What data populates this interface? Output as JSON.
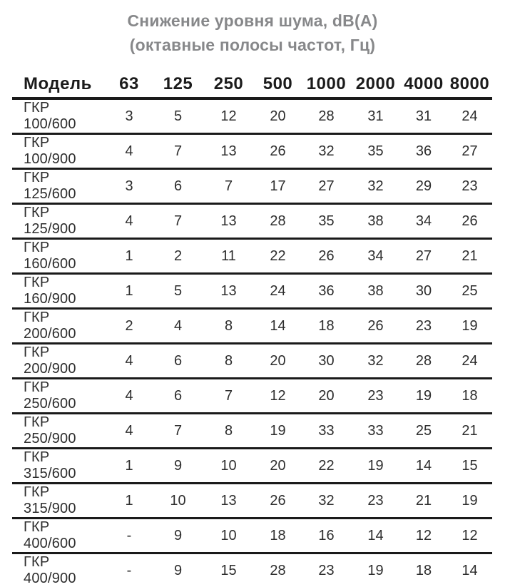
{
  "title": {
    "line1": "Снижение уровня шума, dB(A)",
    "line2": "(октавные полосы частот, Гц)"
  },
  "table": {
    "model_header": "Модель",
    "frequency_headers": [
      "63",
      "125",
      "250",
      "500",
      "1000",
      "2000",
      "4000",
      "8000"
    ],
    "rows": [
      {
        "model": "ГКР 100/600",
        "values": [
          "3",
          "5",
          "12",
          "20",
          "28",
          "31",
          "31",
          "24"
        ]
      },
      {
        "model": "ГКР 100/900",
        "values": [
          "4",
          "7",
          "13",
          "26",
          "32",
          "35",
          "36",
          "27"
        ]
      },
      {
        "model": "ГКР 125/600",
        "values": [
          "3",
          "6",
          "7",
          "17",
          "27",
          "32",
          "29",
          "23"
        ]
      },
      {
        "model": "ГКР 125/900",
        "values": [
          "4",
          "7",
          "13",
          "28",
          "35",
          "38",
          "34",
          "26"
        ]
      },
      {
        "model": "ГКР 160/600",
        "values": [
          "1",
          "2",
          "11",
          "22",
          "26",
          "34",
          "27",
          "21"
        ]
      },
      {
        "model": "ГКР 160/900",
        "values": [
          "1",
          "5",
          "13",
          "24",
          "36",
          "38",
          "30",
          "25"
        ]
      },
      {
        "model": "ГКР 200/600",
        "values": [
          "2",
          "4",
          "8",
          "14",
          "18",
          "26",
          "23",
          "19"
        ]
      },
      {
        "model": "ГКР 200/900",
        "values": [
          "4",
          "6",
          "8",
          "20",
          "30",
          "32",
          "28",
          "24"
        ]
      },
      {
        "model": "ГКР 250/600",
        "values": [
          "4",
          "6",
          "7",
          "12",
          "20",
          "23",
          "19",
          "18"
        ]
      },
      {
        "model": "ГКР 250/900",
        "values": [
          "4",
          "7",
          "8",
          "19",
          "33",
          "33",
          "25",
          "21"
        ]
      },
      {
        "model": "ГКР 315/600",
        "values": [
          "1",
          "9",
          "10",
          "20",
          "22",
          "19",
          "14",
          "15"
        ]
      },
      {
        "model": "ГКР 315/900",
        "values": [
          "1",
          "10",
          "13",
          "26",
          "32",
          "23",
          "21",
          "19"
        ]
      },
      {
        "model": "ГКР 400/600",
        "values": [
          "-",
          "9",
          "10",
          "18",
          "16",
          "14",
          "12",
          "12"
        ]
      },
      {
        "model": "ГКР 400/900",
        "values": [
          "-",
          "9",
          "15",
          "28",
          "23",
          "19",
          "18",
          "14"
        ]
      }
    ]
  },
  "colors": {
    "title_gray": "#87888a",
    "text_dark": "#2d2d2d",
    "header_black": "#1b1b1b",
    "line_black": "#1a1a1a",
    "background": "#ffffff"
  }
}
